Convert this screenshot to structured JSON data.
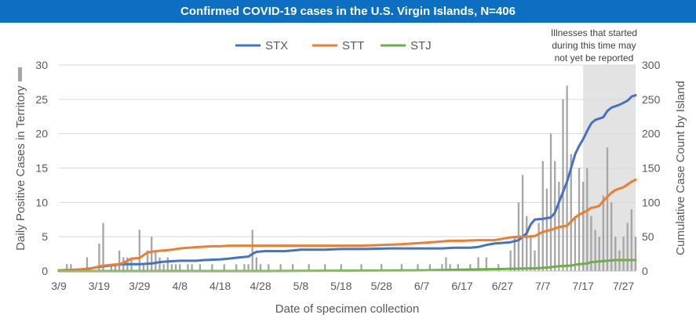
{
  "title": "Confirmed COVID-19 cases in the U.S. Virgin Islands, N=406",
  "chart_data": {
    "type": "bar+line",
    "title": "Confirmed COVID-19 cases in the U.S. Virgin Islands, N=406",
    "xlabel": "Date of specimen collection",
    "ylabel_left": "Daily Positive Cases in Territory",
    "ylabel_right": "Cumulative Case Count by Island",
    "ylim_left": [
      0,
      30
    ],
    "ylim_right": [
      0,
      300
    ],
    "yticks_left": [
      0,
      5,
      10,
      15,
      20,
      25,
      30
    ],
    "yticks_right": [
      0,
      50,
      100,
      150,
      200,
      250,
      300
    ],
    "x_tick_labels": [
      "3/9",
      "3/19",
      "3/29",
      "4/8",
      "4/18",
      "4/28",
      "5/8",
      "5/18",
      "5/28",
      "6/7",
      "6/17",
      "6/27",
      "7/7",
      "7/17",
      "7/27"
    ],
    "x_tick_day_index": [
      0,
      10,
      20,
      30,
      40,
      50,
      60,
      70,
      80,
      90,
      100,
      110,
      120,
      130,
      140
    ],
    "x_day_max": 143,
    "grid": true,
    "legend_position": "top",
    "annotation": "Illnesses that started\nduring this time may\nnot yet be reported",
    "shaded_region_days": [
      130,
      143
    ],
    "daily_cases": {
      "name": "Daily Positive Cases in Territory",
      "color": "#a6a6a6",
      "points": [
        [
          2,
          1
        ],
        [
          3,
          1
        ],
        [
          7,
          2
        ],
        [
          10,
          4
        ],
        [
          11,
          7
        ],
        [
          13,
          1
        ],
        [
          14,
          1
        ],
        [
          15,
          3
        ],
        [
          16,
          2
        ],
        [
          17,
          2
        ],
        [
          18,
          2
        ],
        [
          20,
          6
        ],
        [
          21,
          1
        ],
        [
          22,
          3
        ],
        [
          23,
          5
        ],
        [
          24,
          3
        ],
        [
          25,
          2
        ],
        [
          26,
          1
        ],
        [
          27,
          2
        ],
        [
          28,
          1
        ],
        [
          29,
          1
        ],
        [
          30,
          1
        ],
        [
          32,
          1
        ],
        [
          33,
          1
        ],
        [
          35,
          1
        ],
        [
          38,
          1
        ],
        [
          41,
          1
        ],
        [
          44,
          1
        ],
        [
          46,
          1
        ],
        [
          47,
          1
        ],
        [
          48,
          6
        ],
        [
          49,
          2
        ],
        [
          50,
          1
        ],
        [
          52,
          1
        ],
        [
          55,
          1
        ],
        [
          58,
          1
        ],
        [
          62,
          1
        ],
        [
          66,
          1
        ],
        [
          70,
          1
        ],
        [
          75,
          1
        ],
        [
          80,
          1
        ],
        [
          85,
          1
        ],
        [
          89,
          1
        ],
        [
          92,
          1
        ],
        [
          95,
          1
        ],
        [
          96,
          2
        ],
        [
          97,
          1
        ],
        [
          99,
          1
        ],
        [
          102,
          1
        ],
        [
          104,
          2
        ],
        [
          106,
          2
        ],
        [
          109,
          1
        ],
        [
          112,
          3
        ],
        [
          113,
          5
        ],
        [
          114,
          10
        ],
        [
          115,
          14
        ],
        [
          116,
          8
        ],
        [
          117,
          5
        ],
        [
          118,
          3
        ],
        [
          119,
          7
        ],
        [
          120,
          16
        ],
        [
          121,
          12
        ],
        [
          122,
          20
        ],
        [
          123,
          16
        ],
        [
          124,
          13
        ],
        [
          125,
          25
        ],
        [
          126,
          27
        ],
        [
          127,
          17
        ],
        [
          128,
          8
        ],
        [
          129,
          15
        ],
        [
          130,
          13
        ],
        [
          131,
          15
        ],
        [
          132,
          8
        ],
        [
          133,
          6
        ],
        [
          134,
          5
        ],
        [
          135,
          11
        ],
        [
          136,
          18
        ],
        [
          137,
          10
        ],
        [
          138,
          5
        ],
        [
          139,
          3
        ],
        [
          140,
          5
        ],
        [
          141,
          7
        ],
        [
          142,
          9
        ],
        [
          143,
          5
        ]
      ]
    },
    "series": [
      {
        "name": "STX",
        "color": "#4472c4",
        "points": [
          [
            0,
            1
          ],
          [
            5,
            2
          ],
          [
            8,
            4
          ],
          [
            10,
            6
          ],
          [
            14,
            9
          ],
          [
            16,
            10
          ],
          [
            18,
            10
          ],
          [
            20,
            10
          ],
          [
            23,
            11
          ],
          [
            25,
            13
          ],
          [
            27,
            14
          ],
          [
            30,
            15
          ],
          [
            34,
            15
          ],
          [
            36,
            16
          ],
          [
            40,
            17
          ],
          [
            42,
            18
          ],
          [
            45,
            20
          ],
          [
            47,
            21
          ],
          [
            48,
            25
          ],
          [
            49,
            28
          ],
          [
            51,
            29
          ],
          [
            56,
            29
          ],
          [
            58,
            30
          ],
          [
            60,
            31
          ],
          [
            66,
            31
          ],
          [
            70,
            32
          ],
          [
            76,
            32
          ],
          [
            82,
            33
          ],
          [
            90,
            33
          ],
          [
            95,
            33
          ],
          [
            98,
            34
          ],
          [
            102,
            34
          ],
          [
            104,
            35
          ],
          [
            106,
            38
          ],
          [
            108,
            40
          ],
          [
            110,
            41
          ],
          [
            112,
            42
          ],
          [
            114,
            45
          ],
          [
            116,
            55
          ],
          [
            117,
            68
          ],
          [
            118,
            75
          ],
          [
            120,
            76
          ],
          [
            122,
            78
          ],
          [
            123,
            85
          ],
          [
            124,
            100
          ],
          [
            125,
            115
          ],
          [
            126,
            130
          ],
          [
            127,
            150
          ],
          [
            128,
            170
          ],
          [
            129,
            182
          ],
          [
            130,
            192
          ],
          [
            131,
            204
          ],
          [
            132,
            215
          ],
          [
            133,
            220
          ],
          [
            134,
            222
          ],
          [
            135,
            224
          ],
          [
            136,
            233
          ],
          [
            137,
            238
          ],
          [
            138,
            240
          ],
          [
            139,
            242
          ],
          [
            140,
            245
          ],
          [
            141,
            248
          ],
          [
            142,
            254
          ],
          [
            143,
            256
          ]
        ]
      },
      {
        "name": "STT",
        "color": "#ed7d31",
        "points": [
          [
            0,
            1
          ],
          [
            4,
            2
          ],
          [
            7,
            3
          ],
          [
            9,
            5
          ],
          [
            10,
            7
          ],
          [
            13,
            9
          ],
          [
            15,
            10
          ],
          [
            16,
            12
          ],
          [
            18,
            18
          ],
          [
            20,
            19
          ],
          [
            22,
            27
          ],
          [
            24,
            29
          ],
          [
            26,
            30
          ],
          [
            28,
            31
          ],
          [
            30,
            33
          ],
          [
            32,
            34
          ],
          [
            35,
            35
          ],
          [
            38,
            36
          ],
          [
            40,
            36
          ],
          [
            42,
            37
          ],
          [
            44,
            37
          ],
          [
            47,
            37
          ],
          [
            50,
            37
          ],
          [
            55,
            37
          ],
          [
            60,
            37
          ],
          [
            65,
            37
          ],
          [
            70,
            37
          ],
          [
            75,
            37
          ],
          [
            80,
            38
          ],
          [
            85,
            39
          ],
          [
            90,
            41
          ],
          [
            95,
            43
          ],
          [
            97,
            44
          ],
          [
            100,
            44
          ],
          [
            104,
            45
          ],
          [
            108,
            45
          ],
          [
            110,
            47
          ],
          [
            112,
            49
          ],
          [
            114,
            50
          ],
          [
            116,
            50
          ],
          [
            118,
            51
          ],
          [
            120,
            57
          ],
          [
            122,
            60
          ],
          [
            124,
            64
          ],
          [
            126,
            66
          ],
          [
            127,
            72
          ],
          [
            128,
            78
          ],
          [
            129,
            82
          ],
          [
            130,
            85
          ],
          [
            131,
            88
          ],
          [
            132,
            92
          ],
          [
            133,
            93
          ],
          [
            134,
            95
          ],
          [
            135,
            102
          ],
          [
            136,
            108
          ],
          [
            137,
            114
          ],
          [
            138,
            118
          ],
          [
            140,
            122
          ],
          [
            141,
            126
          ],
          [
            142,
            130
          ],
          [
            143,
            133
          ]
        ]
      },
      {
        "name": "STJ",
        "color": "#70ad47",
        "points": [
          [
            0,
            0
          ],
          [
            20,
            0
          ],
          [
            50,
            0
          ],
          [
            90,
            1
          ],
          [
            100,
            2
          ],
          [
            110,
            3
          ],
          [
            118,
            4
          ],
          [
            121,
            5
          ],
          [
            124,
            7
          ],
          [
            127,
            8
          ],
          [
            129,
            10
          ],
          [
            131,
            11
          ],
          [
            132,
            13
          ],
          [
            134,
            14
          ],
          [
            136,
            15
          ],
          [
            138,
            16
          ],
          [
            140,
            16
          ],
          [
            143,
            16
          ]
        ]
      }
    ]
  }
}
